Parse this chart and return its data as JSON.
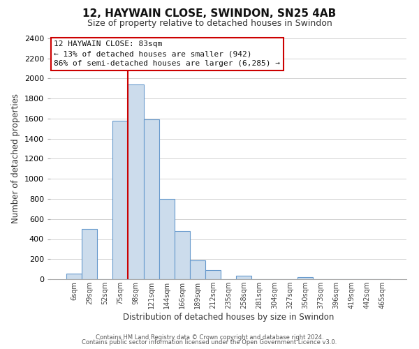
{
  "title": "12, HAYWAIN CLOSE, SWINDON, SN25 4AB",
  "subtitle": "Size of property relative to detached houses in Swindon",
  "xlabel": "Distribution of detached houses by size in Swindon",
  "ylabel": "Number of detached properties",
  "bar_labels": [
    "6sqm",
    "29sqm",
    "52sqm",
    "75sqm",
    "98sqm",
    "121sqm",
    "144sqm",
    "166sqm",
    "189sqm",
    "212sqm",
    "235sqm",
    "258sqm",
    "281sqm",
    "304sqm",
    "327sqm",
    "350sqm",
    "373sqm",
    "396sqm",
    "419sqm",
    "442sqm",
    "465sqm"
  ],
  "bar_values": [
    55,
    500,
    0,
    1580,
    1940,
    1590,
    800,
    480,
    185,
    90,
    0,
    35,
    0,
    0,
    0,
    20,
    0,
    0,
    0,
    0,
    0
  ],
  "bar_color": "#ccdcec",
  "bar_edge_color": "#6699cc",
  "ylim": [
    0,
    2400
  ],
  "yticks": [
    0,
    200,
    400,
    600,
    800,
    1000,
    1200,
    1400,
    1600,
    1800,
    2000,
    2200,
    2400
  ],
  "property_line_color": "#cc0000",
  "annotation_title": "12 HAYWAIN CLOSE: 83sqm",
  "annotation_line1": "← 13% of detached houses are smaller (942)",
  "annotation_line2": "86% of semi-detached houses are larger (6,285) →",
  "footer_line1": "Contains HM Land Registry data © Crown copyright and database right 2024.",
  "footer_line2": "Contains public sector information licensed under the Open Government Licence v3.0.",
  "background_color": "#ffffff",
  "grid_color": "#cccccc"
}
